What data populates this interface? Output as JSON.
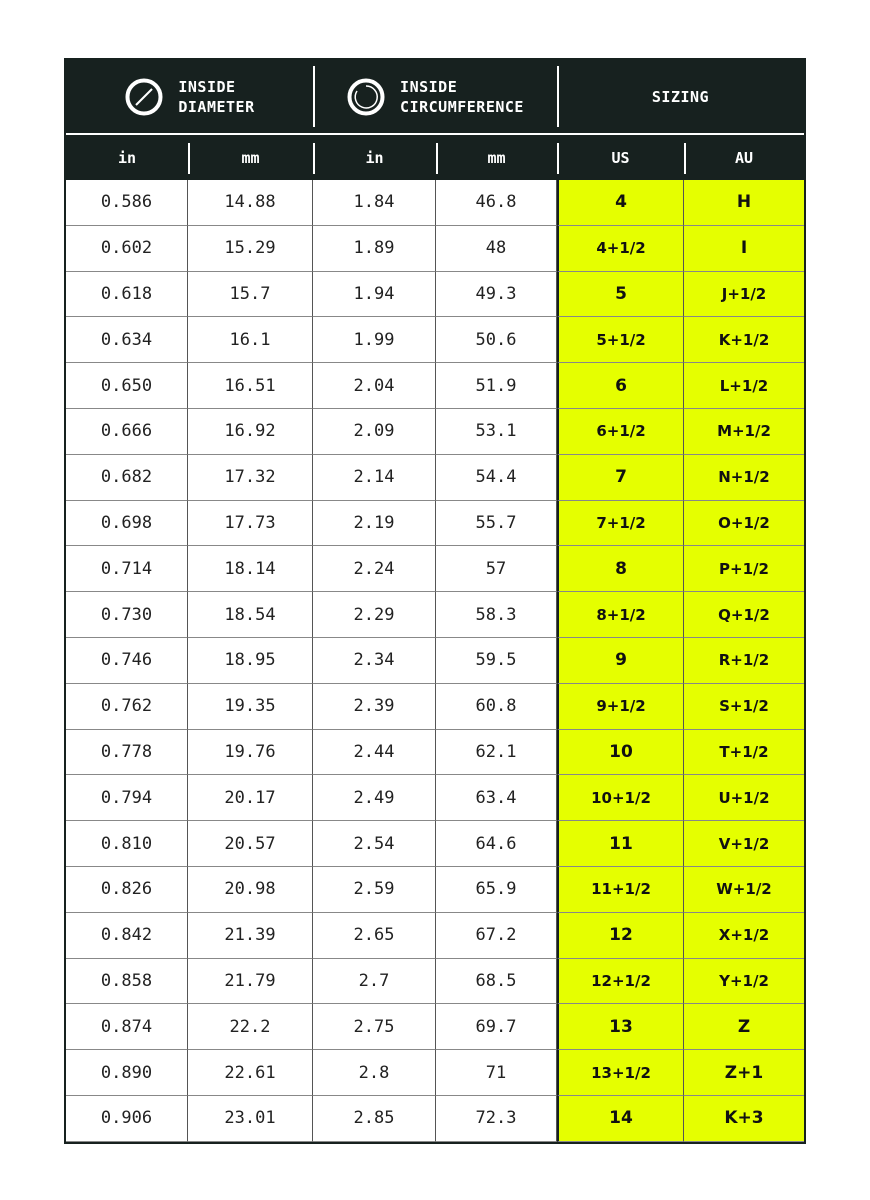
{
  "header": {
    "groups": [
      {
        "icon": "diameter-icon",
        "line1": "INSIDE",
        "line2": "DIAMETER"
      },
      {
        "icon": "circumference-icon",
        "line1": "INSIDE",
        "line2": "CIRCUMFERENCE"
      },
      {
        "label": "SIZING"
      }
    ],
    "columns": [
      "in",
      "mm",
      "in",
      "mm",
      "US",
      "AU"
    ]
  },
  "colors": {
    "dark": "#17211f",
    "highlight": "#e5ff00"
  },
  "rows": [
    [
      "0.586",
      "14.88",
      "1.84",
      "46.8",
      "4",
      "H"
    ],
    [
      "0.602",
      "15.29",
      "1.89",
      "48",
      "4+1/2",
      "I"
    ],
    [
      "0.618",
      "15.7",
      "1.94",
      "49.3",
      "5",
      "J+1/2"
    ],
    [
      "0.634",
      "16.1",
      "1.99",
      "50.6",
      "5+1/2",
      "K+1/2"
    ],
    [
      "0.650",
      "16.51",
      "2.04",
      "51.9",
      "6",
      "L+1/2"
    ],
    [
      "0.666",
      "16.92",
      "2.09",
      "53.1",
      "6+1/2",
      "M+1/2"
    ],
    [
      "0.682",
      "17.32",
      "2.14",
      "54.4",
      "7",
      "N+1/2"
    ],
    [
      "0.698",
      "17.73",
      "2.19",
      "55.7",
      "7+1/2",
      "O+1/2"
    ],
    [
      "0.714",
      "18.14",
      "2.24",
      "57",
      "8",
      "P+1/2"
    ],
    [
      "0.730",
      "18.54",
      "2.29",
      "58.3",
      "8+1/2",
      "Q+1/2"
    ],
    [
      "0.746",
      "18.95",
      "2.34",
      "59.5",
      "9",
      "R+1/2"
    ],
    [
      "0.762",
      "19.35",
      "2.39",
      "60.8",
      "9+1/2",
      "S+1/2"
    ],
    [
      "0.778",
      "19.76",
      "2.44",
      "62.1",
      "10",
      "T+1/2"
    ],
    [
      "0.794",
      "20.17",
      "2.49",
      "63.4",
      "10+1/2",
      "U+1/2"
    ],
    [
      "0.810",
      "20.57",
      "2.54",
      "64.6",
      "11",
      "V+1/2"
    ],
    [
      "0.826",
      "20.98",
      "2.59",
      "65.9",
      "11+1/2",
      "W+1/2"
    ],
    [
      "0.842",
      "21.39",
      "2.65",
      "67.2",
      "12",
      "X+1/2"
    ],
    [
      "0.858",
      "21.79",
      "2.7",
      "68.5",
      "12+1/2",
      "Y+1/2"
    ],
    [
      "0.874",
      "22.2",
      "2.75",
      "69.7",
      "13",
      "Z"
    ],
    [
      "0.890",
      "22.61",
      "2.8",
      "71",
      "13+1/2",
      "Z+1"
    ],
    [
      "0.906",
      "23.01",
      "2.85",
      "72.3",
      "14",
      "K+3"
    ]
  ]
}
